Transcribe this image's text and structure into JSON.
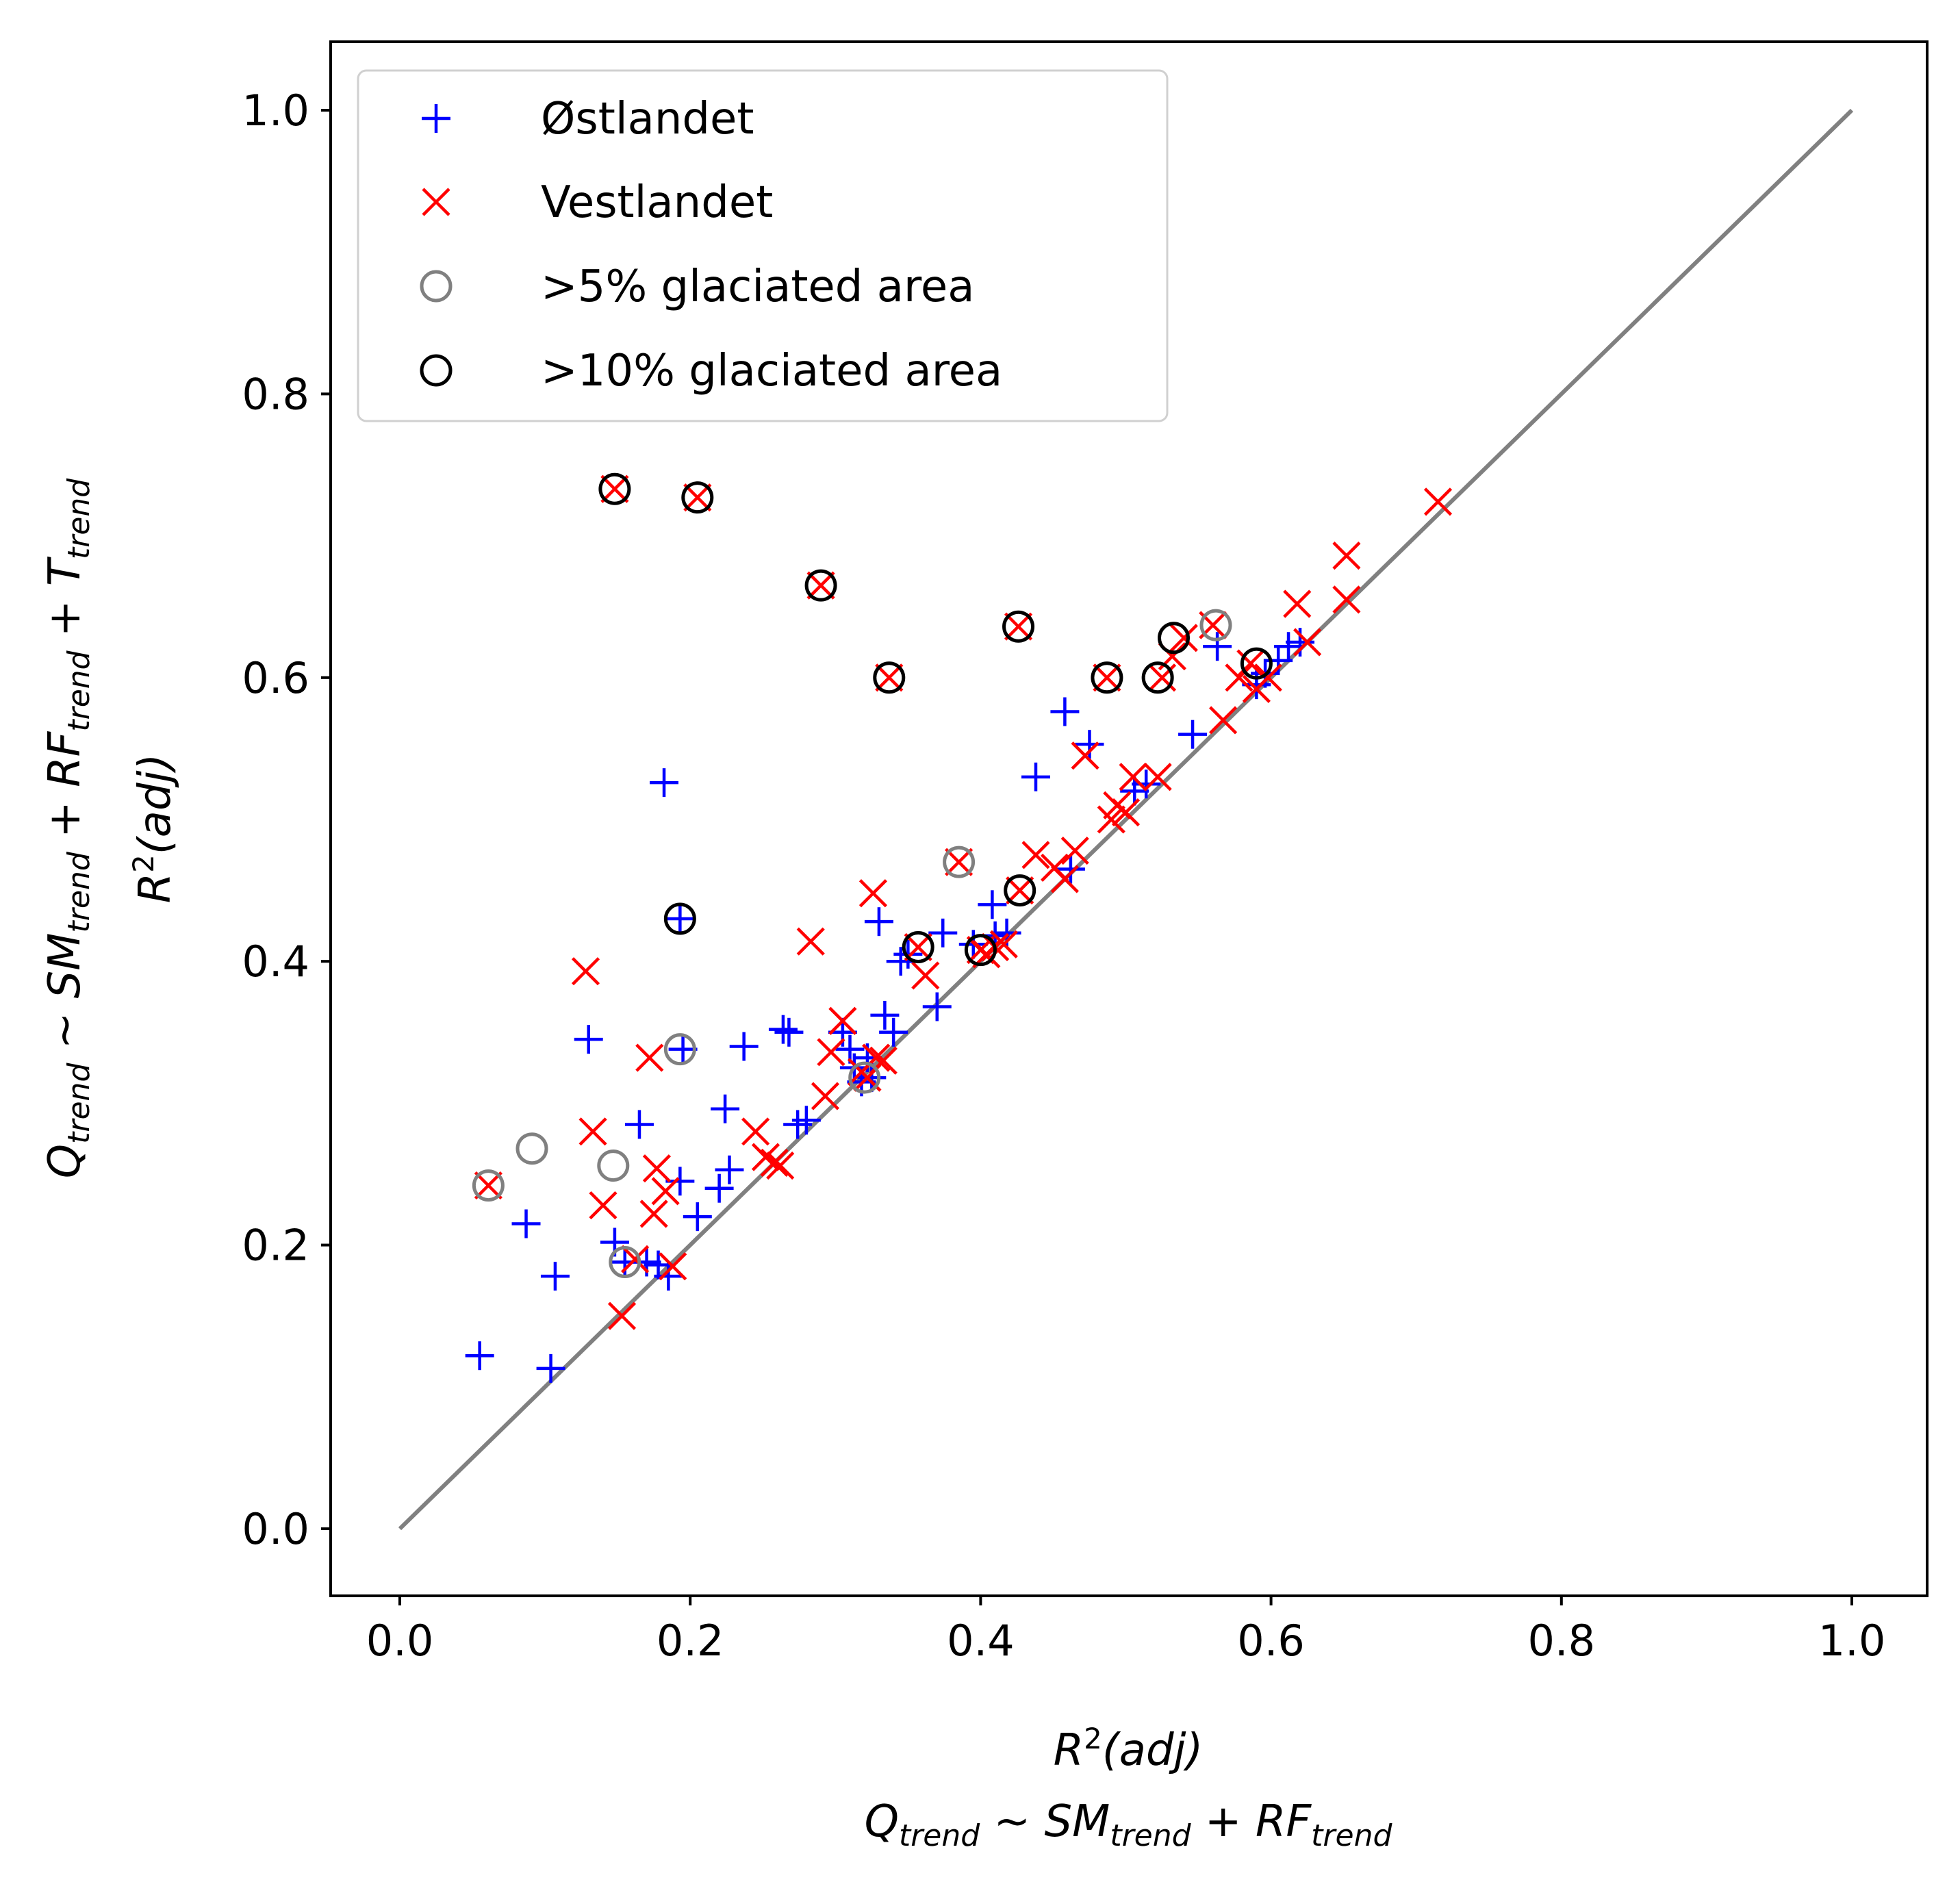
{
  "chart_data": {
    "type": "scatter",
    "title": "",
    "xlabel": "R^2(adj) | Q_trend ~ SM_trend + RF_trend",
    "ylabel": "Q_trend ~ SM_trend + RF_trend + T_trend | R^2(adj)",
    "xlim": [
      -0.048,
      1.05
    ],
    "ylim": [
      -0.048,
      1.05
    ],
    "xticks": [
      "0.0",
      "0.2",
      "0.4",
      "0.6",
      "0.8",
      "1.0"
    ],
    "yticks": [
      "0.0",
      "0.2",
      "0.4",
      "0.6",
      "0.8",
      "1.0"
    ],
    "grid": false,
    "legend_position": "top-left",
    "reference_line": {
      "x": [
        0,
        1
      ],
      "y": [
        0,
        1
      ],
      "color": "#808080"
    },
    "series": [
      {
        "name": "Østlandet",
        "marker": "+",
        "color": "#0000ff",
        "points": [
          [
            0.055,
            0.122
          ],
          [
            0.104,
            0.113
          ],
          [
            0.087,
            0.215
          ],
          [
            0.107,
            0.178
          ],
          [
            0.13,
            0.345
          ],
          [
            0.148,
            0.202
          ],
          [
            0.155,
            0.188
          ],
          [
            0.165,
            0.285
          ],
          [
            0.17,
            0.188
          ],
          [
            0.178,
            0.186
          ],
          [
            0.182,
            0.526
          ],
          [
            0.185,
            0.178
          ],
          [
            0.193,
            0.245
          ],
          [
            0.193,
            0.43
          ],
          [
            0.195,
            0.338
          ],
          [
            0.205,
            0.22
          ],
          [
            0.22,
            0.24
          ],
          [
            0.224,
            0.296
          ],
          [
            0.227,
            0.253
          ],
          [
            0.237,
            0.34
          ],
          [
            0.264,
            0.352
          ],
          [
            0.268,
            0.35
          ],
          [
            0.274,
            0.285
          ],
          [
            0.28,
            0.288
          ],
          [
            0.305,
            0.35
          ],
          [
            0.31,
            0.338
          ],
          [
            0.313,
            0.325
          ],
          [
            0.318,
            0.315
          ],
          [
            0.322,
            0.332
          ],
          [
            0.325,
            0.318
          ],
          [
            0.33,
            0.428
          ],
          [
            0.334,
            0.362
          ],
          [
            0.34,
            0.35
          ],
          [
            0.345,
            0.4
          ],
          [
            0.35,
            0.405
          ],
          [
            0.37,
            0.368
          ],
          [
            0.374,
            0.42
          ],
          [
            0.395,
            0.412
          ],
          [
            0.408,
            0.44
          ],
          [
            0.41,
            0.418
          ],
          [
            0.418,
            0.42
          ],
          [
            0.438,
            0.53
          ],
          [
            0.458,
            0.576
          ],
          [
            0.462,
            0.465
          ],
          [
            0.475,
            0.553
          ],
          [
            0.506,
            0.52
          ],
          [
            0.514,
            0.525
          ],
          [
            0.546,
            0.56
          ],
          [
            0.563,
            0.622
          ],
          [
            0.59,
            0.595
          ],
          [
            0.596,
            0.603
          ],
          [
            0.605,
            0.612
          ],
          [
            0.612,
            0.622
          ],
          [
            0.62,
            0.625
          ]
        ]
      },
      {
        "name": "Vestlandet",
        "marker": "x",
        "color": "#ff0000",
        "points": [
          [
            0.061,
            0.242
          ],
          [
            0.128,
            0.393
          ],
          [
            0.133,
            0.28
          ],
          [
            0.14,
            0.228
          ],
          [
            0.148,
            0.733
          ],
          [
            0.153,
            0.15
          ],
          [
            0.162,
            0.19
          ],
          [
            0.172,
            0.332
          ],
          [
            0.175,
            0.222
          ],
          [
            0.177,
            0.254
          ],
          [
            0.183,
            0.238
          ],
          [
            0.188,
            0.185
          ],
          [
            0.205,
            0.727
          ],
          [
            0.245,
            0.28
          ],
          [
            0.252,
            0.262
          ],
          [
            0.258,
            0.258
          ],
          [
            0.262,
            0.256
          ],
          [
            0.283,
            0.414
          ],
          [
            0.29,
            0.665
          ],
          [
            0.293,
            0.305
          ],
          [
            0.297,
            0.336
          ],
          [
            0.305,
            0.358
          ],
          [
            0.318,
            0.322
          ],
          [
            0.322,
            0.318
          ],
          [
            0.326,
            0.448
          ],
          [
            0.328,
            0.332
          ],
          [
            0.333,
            0.33
          ],
          [
            0.337,
            0.6
          ],
          [
            0.357,
            0.41
          ],
          [
            0.362,
            0.39
          ],
          [
            0.385,
            0.47
          ],
          [
            0.4,
            0.408
          ],
          [
            0.404,
            0.405
          ],
          [
            0.41,
            0.41
          ],
          [
            0.416,
            0.412
          ],
          [
            0.426,
            0.636
          ],
          [
            0.427,
            0.45
          ],
          [
            0.438,
            0.475
          ],
          [
            0.451,
            0.466
          ],
          [
            0.458,
            0.458
          ],
          [
            0.465,
            0.478
          ],
          [
            0.472,
            0.545
          ],
          [
            0.487,
            0.6
          ],
          [
            0.49,
            0.5
          ],
          [
            0.494,
            0.51
          ],
          [
            0.5,
            0.505
          ],
          [
            0.505,
            0.53
          ],
          [
            0.522,
            0.53
          ],
          [
            0.525,
            0.6
          ],
          [
            0.532,
            0.615
          ],
          [
            0.54,
            0.628
          ],
          [
            0.56,
            0.637
          ],
          [
            0.567,
            0.57
          ],
          [
            0.578,
            0.6
          ],
          [
            0.586,
            0.61
          ],
          [
            0.59,
            0.592
          ],
          [
            0.598,
            0.6
          ],
          [
            0.618,
            0.652
          ],
          [
            0.625,
            0.625
          ],
          [
            0.652,
            0.686
          ],
          [
            0.652,
            0.655
          ],
          [
            0.715,
            0.724
          ]
        ]
      },
      {
        "name": ">5% glaciated area",
        "marker": "o",
        "color": "#808080",
        "points": [
          [
            0.061,
            0.242
          ],
          [
            0.091,
            0.268
          ],
          [
            0.147,
            0.256
          ],
          [
            0.155,
            0.188
          ],
          [
            0.193,
            0.338
          ],
          [
            0.32,
            0.318
          ],
          [
            0.385,
            0.47
          ],
          [
            0.562,
            0.637
          ]
        ]
      },
      {
        "name": ">10% glaciated area",
        "marker": "o",
        "color": "#000000",
        "points": [
          [
            0.148,
            0.733
          ],
          [
            0.205,
            0.727
          ],
          [
            0.193,
            0.43
          ],
          [
            0.29,
            0.665
          ],
          [
            0.337,
            0.6
          ],
          [
            0.357,
            0.41
          ],
          [
            0.4,
            0.408
          ],
          [
            0.426,
            0.636
          ],
          [
            0.427,
            0.45
          ],
          [
            0.487,
            0.6
          ],
          [
            0.522,
            0.6
          ],
          [
            0.533,
            0.628
          ],
          [
            0.59,
            0.61
          ]
        ]
      }
    ]
  }
}
